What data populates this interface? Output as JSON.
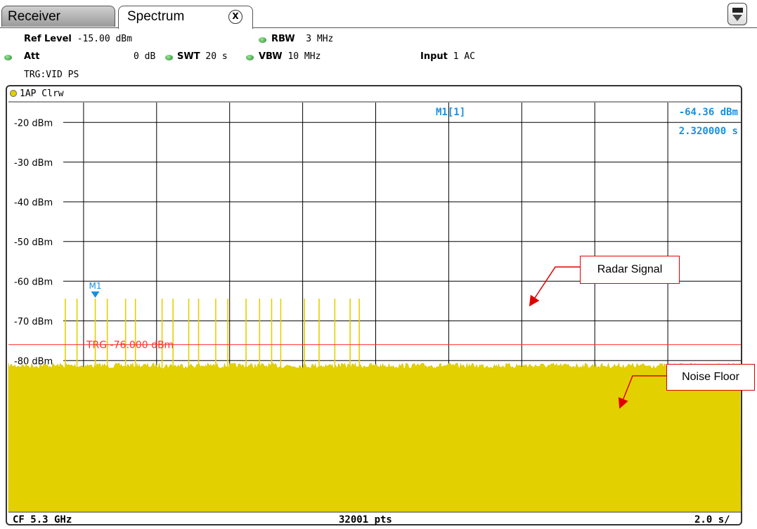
{
  "tabs": [
    {
      "label": "Receiver",
      "active": false
    },
    {
      "label": "Spectrum",
      "active": true
    }
  ],
  "tab_close_icon": "close-x-icon",
  "menu_icon": "window-menu-icon",
  "settings": {
    "ref_level_label": "Ref Level",
    "ref_level_value": "-15.00 dBm",
    "att_label": "Att",
    "att_value": "0 dB",
    "swt_label": "SWT",
    "swt_value": "20 s",
    "rbw_label": "RBW",
    "rbw_value": "3 MHz",
    "vbw_label": "VBW",
    "vbw_value": "10 MHz",
    "input_label": "Input",
    "input_value": "1 AC",
    "trigger": "TRG:VID PS"
  },
  "trace_label": "1AP Clrw",
  "colors": {
    "trace": "#e3d000",
    "marker": "#1a8fe0",
    "trigger": "#ff3030",
    "annotation": "#e00000",
    "grid": "#000000"
  },
  "chart_data": {
    "type": "line",
    "y_unit": "dBm",
    "y_ticks": [
      "-20 dBm",
      "-30 dBm",
      "-40 dBm",
      "-50 dBm",
      "-60 dBm",
      "-70 dBm",
      "-80 dBm"
    ],
    "y_tick_values": [
      -20,
      -30,
      -40,
      -50,
      -60,
      -70,
      -80
    ],
    "ylim": [
      -15,
      -118
    ],
    "xlim": [
      0,
      20
    ],
    "x_unit": "s",
    "x_divisions": 10,
    "noise_floor_dBm": -81.5,
    "pulses": {
      "x_s": [
        1.5,
        1.82,
        2.32,
        2.65,
        3.15,
        3.42,
        4.15,
        4.45,
        4.88,
        5.15,
        5.62,
        5.95,
        6.45,
        6.82,
        7.15,
        7.4,
        8.05,
        8.45,
        8.88,
        9.3,
        9.55
      ],
      "y_dBm": [
        -64.4,
        -64.4,
        -64.4,
        -64.4,
        -64.4,
        -64.4,
        -64.4,
        -64.4,
        -64.4,
        -64.4,
        -64.4,
        -64.4,
        -64.4,
        -64.4,
        -64.4,
        -64.4,
        -64.4,
        -64.4,
        -64.4,
        -64.4,
        -64.4
      ]
    },
    "marker": {
      "label": "M1",
      "readout_label": "M1[1]",
      "level": "-64.36 dBm",
      "time": "2.320000 s",
      "x_s": 2.32,
      "y_dBm": -64.36
    },
    "trigger_line": {
      "label": "TRG -76.000 dBm",
      "y_dBm": -76
    }
  },
  "footer": {
    "center_freq": "CF 5.3 GHz",
    "points": "32001 pts",
    "time_per_div": "2.0 s/"
  },
  "annotations": {
    "radar": "Radar Signal",
    "noise": "Noise Floor"
  }
}
